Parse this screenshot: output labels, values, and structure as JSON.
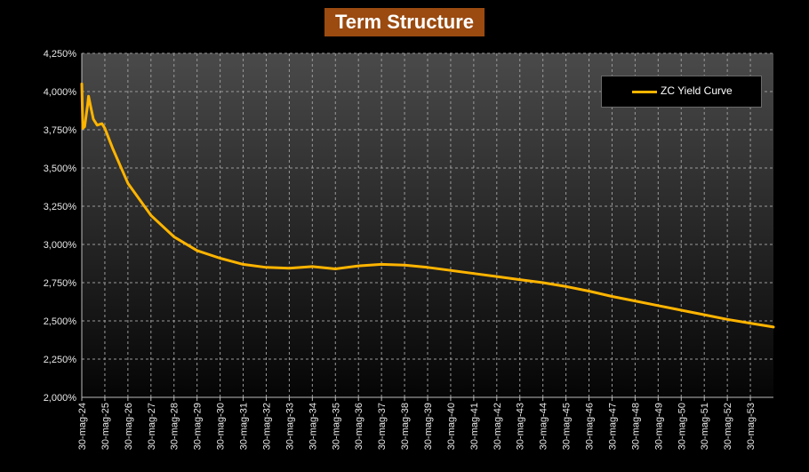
{
  "chart_data": {
    "type": "line",
    "title": "Term Structure",
    "xlabel": "",
    "ylabel": "",
    "ylim": [
      2.0,
      4.25
    ],
    "y_ticks": [
      "2,000%",
      "2,250%",
      "2,500%",
      "2,750%",
      "3,000%",
      "3,250%",
      "3,500%",
      "3,750%",
      "4,000%",
      "4,250%"
    ],
    "x_ticks": [
      "30-mag-24",
      "30-mag-25",
      "30-mag-26",
      "30-mag-27",
      "30-mag-28",
      "30-mag-29",
      "30-mag-30",
      "30-mag-31",
      "30-mag-32",
      "30-mag-33",
      "30-mag-34",
      "30-mag-35",
      "30-mag-36",
      "30-mag-37",
      "30-mag-38",
      "30-mag-39",
      "30-mag-40",
      "30-mag-41",
      "30-mag-42",
      "30-mag-43",
      "30-mag-44",
      "30-mag-45",
      "30-mag-46",
      "30-mag-47",
      "30-mag-48",
      "30-mag-49",
      "30-mag-50",
      "30-mag-51",
      "30-mag-52",
      "30-mag-53"
    ],
    "xlim": [
      "30-mag-24",
      "30-mag-54"
    ],
    "grid": true,
    "legend_position": "top-right",
    "series": [
      {
        "name": "ZC Yield Curve",
        "color": "#ffb400",
        "points": [
          [
            "30-mag-24",
            4.05
          ],
          [
            "15-giu-24",
            3.76
          ],
          [
            "15-lug-24",
            3.77
          ],
          [
            "30-ago-24",
            3.91
          ],
          [
            "15-set-24",
            3.97
          ],
          [
            "15-ott-24",
            3.91
          ],
          [
            "30-nov-24",
            3.82
          ],
          [
            "30-gen-25",
            3.78
          ],
          [
            "15-apr-25",
            3.79
          ],
          [
            "30-mag-25",
            3.76
          ],
          [
            "30-set-25",
            3.63
          ],
          [
            "30-mag-26",
            3.4
          ],
          [
            "30-mag-27",
            3.19
          ],
          [
            "30-mag-28",
            3.05
          ],
          [
            "30-mag-29",
            2.96
          ],
          [
            "30-mag-30",
            2.91
          ],
          [
            "30-mag-31",
            2.87
          ],
          [
            "30-mag-32",
            2.85
          ],
          [
            "30-mag-33",
            2.845
          ],
          [
            "30-mag-34",
            2.855
          ],
          [
            "30-mag-35",
            2.84
          ],
          [
            "30-mag-36",
            2.86
          ],
          [
            "30-mag-37",
            2.87
          ],
          [
            "30-mag-38",
            2.865
          ],
          [
            "30-mag-39",
            2.85
          ],
          [
            "30-mag-40",
            2.83
          ],
          [
            "30-mag-41",
            2.81
          ],
          [
            "30-mag-42",
            2.79
          ],
          [
            "30-mag-43",
            2.77
          ],
          [
            "30-mag-44",
            2.75
          ],
          [
            "30-mag-45",
            2.725
          ],
          [
            "30-mag-46",
            2.695
          ],
          [
            "30-mag-47",
            2.66
          ],
          [
            "30-mag-48",
            2.63
          ],
          [
            "30-mag-49",
            2.6
          ],
          [
            "30-mag-50",
            2.57
          ],
          [
            "30-mag-51",
            2.54
          ],
          [
            "30-mag-52",
            2.51
          ],
          [
            "30-mag-53",
            2.485
          ],
          [
            "30-mag-54",
            2.46
          ]
        ]
      }
    ]
  }
}
